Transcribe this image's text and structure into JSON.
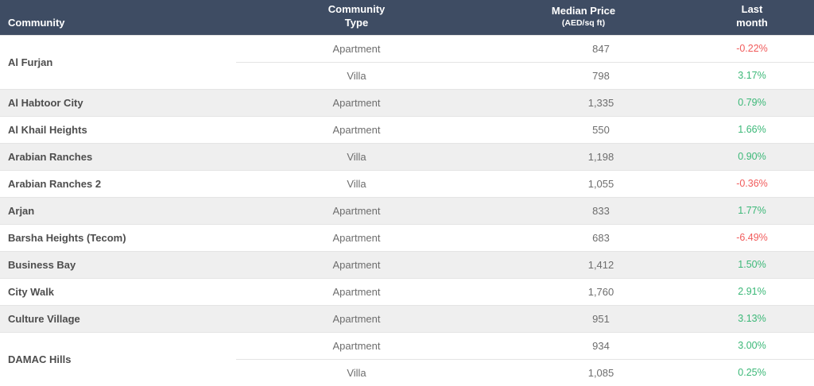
{
  "colors": {
    "header_bg": "#3e4c63",
    "positive": "#3cb878",
    "negative": "#f15b5b",
    "row_alt": "#efefef",
    "border": "#e4e4e4"
  },
  "chart_data": {
    "type": "table",
    "columns": [
      {
        "line1": "",
        "line2": "Community"
      },
      {
        "line1": "Community",
        "line2": "Type"
      },
      {
        "line1": "Median Price",
        "line2": "(AED/sq ft)"
      },
      {
        "line1": "Last",
        "line2": "month"
      }
    ],
    "groups": [
      {
        "community": "Al Furjan",
        "rows": [
          {
            "type": "Apartment",
            "price": "847",
            "change": "-0.22%",
            "trend": "down"
          },
          {
            "type": "Villa",
            "price": "798",
            "change": "3.17%",
            "trend": "up"
          }
        ]
      },
      {
        "community": "Al Habtoor City",
        "rows": [
          {
            "type": "Apartment",
            "price": "1,335",
            "change": "0.79%",
            "trend": "up"
          }
        ]
      },
      {
        "community": "Al Khail Heights",
        "rows": [
          {
            "type": "Apartment",
            "price": "550",
            "change": "1.66%",
            "trend": "up"
          }
        ]
      },
      {
        "community": "Arabian Ranches",
        "rows": [
          {
            "type": "Villa",
            "price": "1,198",
            "change": "0.90%",
            "trend": "up"
          }
        ]
      },
      {
        "community": "Arabian Ranches 2",
        "rows": [
          {
            "type": "Villa",
            "price": "1,055",
            "change": "-0.36%",
            "trend": "down"
          }
        ]
      },
      {
        "community": "Arjan",
        "rows": [
          {
            "type": "Apartment",
            "price": "833",
            "change": "1.77%",
            "trend": "up"
          }
        ]
      },
      {
        "community": "Barsha Heights (Tecom)",
        "rows": [
          {
            "type": "Apartment",
            "price": "683",
            "change": "-6.49%",
            "trend": "down"
          }
        ]
      },
      {
        "community": "Business Bay",
        "rows": [
          {
            "type": "Apartment",
            "price": "1,412",
            "change": "1.50%",
            "trend": "up"
          }
        ]
      },
      {
        "community": "City Walk",
        "rows": [
          {
            "type": "Apartment",
            "price": "1,760",
            "change": "2.91%",
            "trend": "up"
          }
        ]
      },
      {
        "community": "Culture Village",
        "rows": [
          {
            "type": "Apartment",
            "price": "951",
            "change": "3.13%",
            "trend": "up"
          }
        ]
      },
      {
        "community": "DAMAC Hills",
        "rows": [
          {
            "type": "Apartment",
            "price": "934",
            "change": "3.00%",
            "trend": "up"
          },
          {
            "type": "Villa",
            "price": "1,085",
            "change": "0.25%",
            "trend": "up"
          }
        ]
      }
    ]
  }
}
